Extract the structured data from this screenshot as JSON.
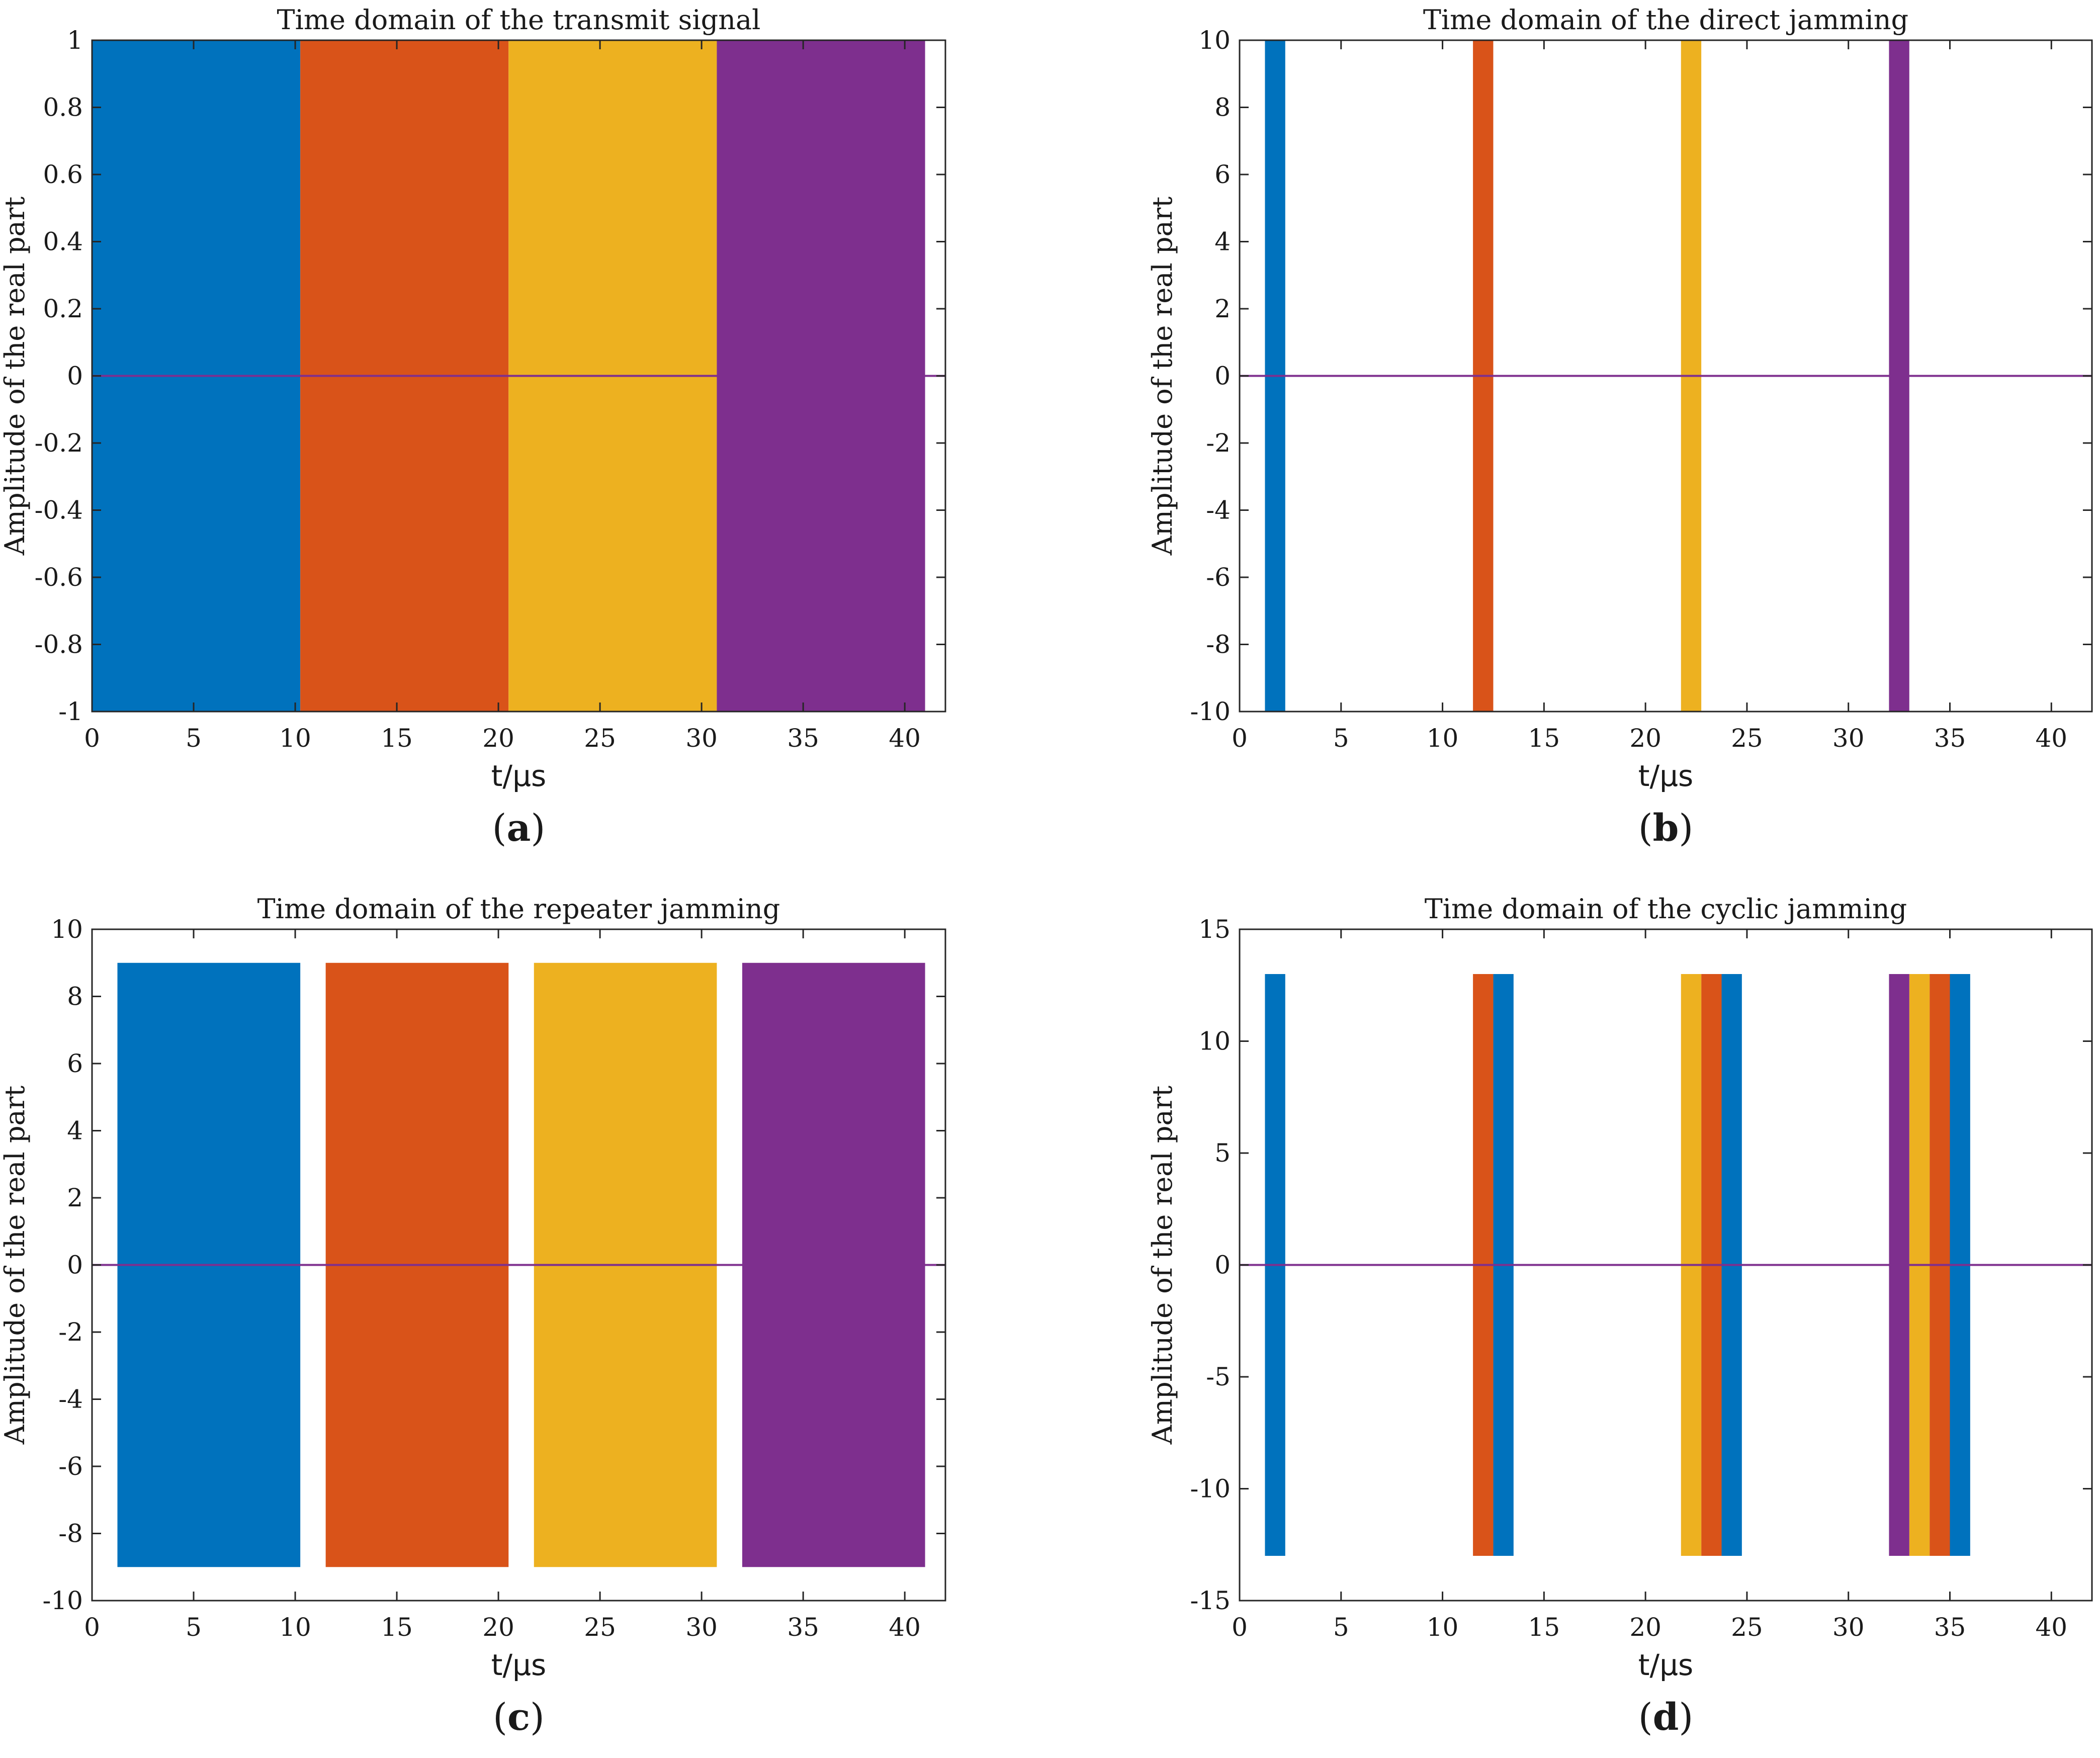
{
  "colors": {
    "blue": "#0072BD",
    "orange": "#D95319",
    "yellow": "#EDB120",
    "purple": "#7E2F8E"
  },
  "chart_data": [
    {
      "panel": "(a)",
      "type": "line",
      "title": "Time domain of the transmit signal",
      "xlabel": "t/μs",
      "ylabel": "Amplitude of the real part",
      "xlim": [
        0,
        42
      ],
      "ylim": [
        -1,
        1
      ],
      "xticks": [
        0,
        5,
        10,
        15,
        20,
        25,
        30,
        35,
        40
      ],
      "yticks": [
        -1,
        -0.8,
        -0.6,
        -0.4,
        -0.2,
        0,
        0.2,
        0.4,
        0.6,
        0.8,
        1
      ],
      "ytick_labels": [
        "-1",
        "-0.8",
        "-0.6",
        "-0.4",
        "-0.2",
        "0",
        "0.2",
        "0.4",
        "0.6",
        "0.8",
        "1"
      ],
      "baseline": 0,
      "series": [
        {
          "color": "blue",
          "segments": [
            {
              "x": [
                0,
                10.25
              ],
              "y": [
                -1,
                1
              ]
            }
          ]
        },
        {
          "color": "orange",
          "segments": [
            {
              "x": [
                10.25,
                20.5
              ],
              "y": [
                -1,
                1
              ]
            }
          ]
        },
        {
          "color": "yellow",
          "segments": [
            {
              "x": [
                20.5,
                30.75
              ],
              "y": [
                -1,
                1
              ]
            }
          ]
        },
        {
          "color": "purple",
          "segments": [
            {
              "x": [
                30.75,
                41.0
              ],
              "y": [
                -1,
                1
              ]
            }
          ]
        }
      ]
    },
    {
      "panel": "(b)",
      "type": "line",
      "title": "Time domain of the direct jamming",
      "xlabel": "t/μs",
      "ylabel": "Amplitude of the real part",
      "xlim": [
        0,
        42
      ],
      "ylim": [
        -10,
        10
      ],
      "xticks": [
        0,
        5,
        10,
        15,
        20,
        25,
        30,
        35,
        40
      ],
      "yticks": [
        -10,
        -8,
        -6,
        -4,
        -2,
        0,
        2,
        4,
        6,
        8,
        10
      ],
      "ytick_labels": [
        "-10",
        "-8",
        "-6",
        "-4",
        "-2",
        "0",
        "2",
        "4",
        "6",
        "8",
        "10"
      ],
      "baseline": 0,
      "series": [
        {
          "color": "blue",
          "segments": [
            {
              "x": [
                1.25,
                2.25
              ],
              "y": [
                -10,
                10
              ]
            }
          ]
        },
        {
          "color": "orange",
          "segments": [
            {
              "x": [
                11.5,
                12.5
              ],
              "y": [
                -10,
                10
              ]
            }
          ]
        },
        {
          "color": "yellow",
          "segments": [
            {
              "x": [
                21.75,
                22.75
              ],
              "y": [
                -10,
                10
              ]
            }
          ]
        },
        {
          "color": "purple",
          "segments": [
            {
              "x": [
                32.0,
                33.0
              ],
              "y": [
                -10,
                10
              ]
            }
          ]
        }
      ]
    },
    {
      "panel": "(c)",
      "type": "line",
      "title": "Time domain of the repeater jamming",
      "xlabel": "t/μs",
      "ylabel": "Amplitude of the real part",
      "xlim": [
        0,
        42
      ],
      "ylim": [
        -10,
        10
      ],
      "xticks": [
        0,
        5,
        10,
        15,
        20,
        25,
        30,
        35,
        40
      ],
      "yticks": [
        -10,
        -8,
        -6,
        -4,
        -2,
        0,
        2,
        4,
        6,
        8,
        10
      ],
      "ytick_labels": [
        "-10",
        "-8",
        "-6",
        "-4",
        "-2",
        "0",
        "2",
        "4",
        "6",
        "8",
        "10"
      ],
      "baseline": 0,
      "series": [
        {
          "color": "blue",
          "segments": [
            {
              "x": [
                1.25,
                10.25
              ],
              "y": [
                -9,
                9
              ]
            }
          ]
        },
        {
          "color": "orange",
          "segments": [
            {
              "x": [
                11.5,
                20.5
              ],
              "y": [
                -9,
                9
              ]
            }
          ]
        },
        {
          "color": "yellow",
          "segments": [
            {
              "x": [
                21.75,
                30.75
              ],
              "y": [
                -9,
                9
              ]
            }
          ]
        },
        {
          "color": "purple",
          "segments": [
            {
              "x": [
                32.0,
                41.0
              ],
              "y": [
                -9,
                9
              ]
            }
          ]
        }
      ]
    },
    {
      "panel": "(d)",
      "type": "line",
      "title": "Time domain of the cyclic jamming",
      "xlabel": "t/μs",
      "ylabel": "Amplitude of the real part",
      "xlim": [
        0,
        42
      ],
      "ylim": [
        -15,
        15
      ],
      "xticks": [
        0,
        5,
        10,
        15,
        20,
        25,
        30,
        35,
        40
      ],
      "yticks": [
        -15,
        -10,
        -5,
        0,
        5,
        10,
        15
      ],
      "ytick_labels": [
        "-15",
        "-10",
        "-5",
        "0",
        "5",
        "10",
        "15"
      ],
      "baseline": 0,
      "series": [
        {
          "color": "blue",
          "segments": [
            {
              "x": [
                1.25,
                2.25
              ],
              "y": [
                -13,
                13
              ]
            },
            {
              "x": [
                12.5,
                13.5
              ],
              "y": [
                -13,
                13
              ]
            },
            {
              "x": [
                23.75,
                24.75
              ],
              "y": [
                -13,
                13
              ]
            },
            {
              "x": [
                35.0,
                36.0
              ],
              "y": [
                -13,
                13
              ]
            }
          ]
        },
        {
          "color": "orange",
          "segments": [
            {
              "x": [
                11.5,
                12.5
              ],
              "y": [
                -13,
                13
              ]
            },
            {
              "x": [
                22.75,
                23.75
              ],
              "y": [
                -13,
                13
              ]
            },
            {
              "x": [
                34.0,
                35.0
              ],
              "y": [
                -13,
                13
              ]
            }
          ]
        },
        {
          "color": "yellow",
          "segments": [
            {
              "x": [
                21.75,
                22.75
              ],
              "y": [
                -13,
                13
              ]
            },
            {
              "x": [
                33.0,
                34.0
              ],
              "y": [
                -13,
                13
              ]
            }
          ]
        },
        {
          "color": "purple",
          "segments": [
            {
              "x": [
                32.0,
                33.0
              ],
              "y": [
                -13,
                13
              ]
            }
          ]
        }
      ]
    }
  ]
}
